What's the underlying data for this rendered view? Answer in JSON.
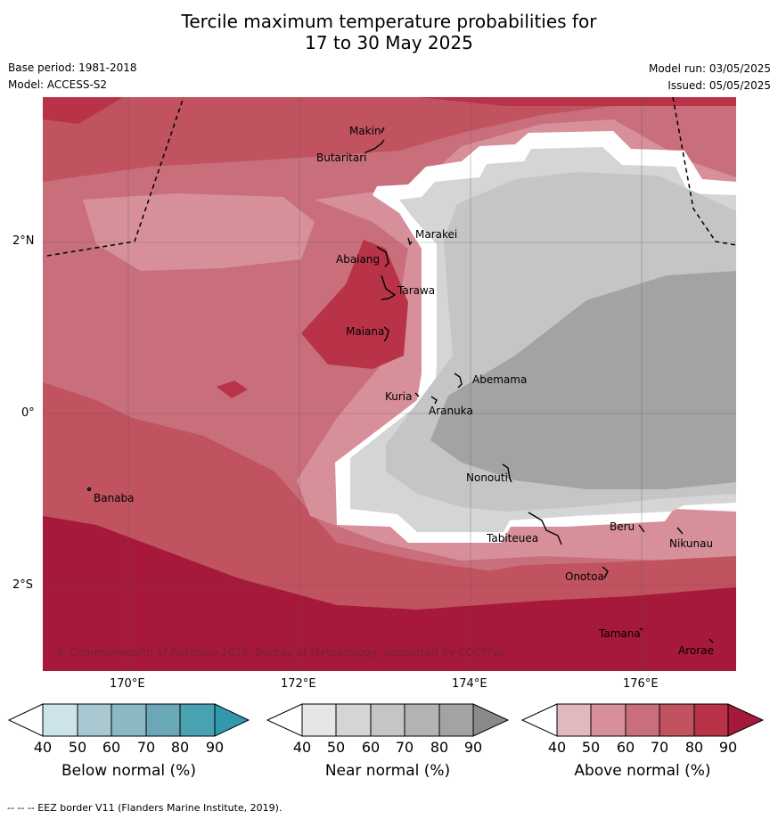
{
  "title": {
    "line1": "Tercile maximum temperature probabilities for",
    "line2": "17 to 30 May 2025"
  },
  "meta": {
    "base_period": "Base period: 1981-2018",
    "model": "Model: ACCESS-S2",
    "model_run": "Model run: 03/05/2025",
    "issued": "Issued: 05/05/2025"
  },
  "map": {
    "lat_labels": [
      "2°N",
      "0°",
      "2°S"
    ],
    "lon_labels": [
      "170°E",
      "172°E",
      "174°E",
      "176°E"
    ],
    "places": {
      "makin": "Makin",
      "butaritari": "Butaritari",
      "marakei": "Marakei",
      "abaiang": "Abaiang",
      "tarawa": "Tarawa",
      "maiana": "Maiana",
      "abemama": "Abemama",
      "kuria": "Kuria",
      "aranuka": "Aranuka",
      "banaba": "Banaba",
      "nonouti": "Nonouti",
      "beru": "Beru",
      "tabiteuea": "Tabiteuea",
      "nikunau": "Nikunau",
      "onotoa": "Onotoa",
      "tamana": "Tamana",
      "arorae": "Arorae"
    },
    "copyright": "© Commonwealth of Australia 2025, Bureau of Meteorology, supported by COSPPac",
    "colors": {
      "above": [
        "#e0b8be",
        "#d7909a",
        "#c96f7c",
        "#c0535f",
        "#b83248",
        "#a6193a"
      ],
      "near": [
        "#e6e6e6",
        "#d5d5d5",
        "#c5c5c5",
        "#b3b3b3",
        "#a3a3a3",
        "#8a8a8a"
      ],
      "below": [
        "#cde3ea",
        "#a8c9d2",
        "#8bb8c5",
        "#6aa8b8",
        "#49a2b2",
        "#3299ab"
      ]
    }
  },
  "colorbars": [
    {
      "label": "Below normal (%)",
      "ticks": [
        "40",
        "50",
        "60",
        "70",
        "80",
        "90"
      ]
    },
    {
      "label": "Near normal (%)",
      "ticks": [
        "40",
        "50",
        "60",
        "70",
        "80",
        "90"
      ]
    },
    {
      "label": "Above normal (%)",
      "ticks": [
        "40",
        "50",
        "60",
        "70",
        "80",
        "90"
      ]
    }
  ],
  "footer": "--  --  -- EEZ border V11 (Flanders Marine Institute, 2019)."
}
